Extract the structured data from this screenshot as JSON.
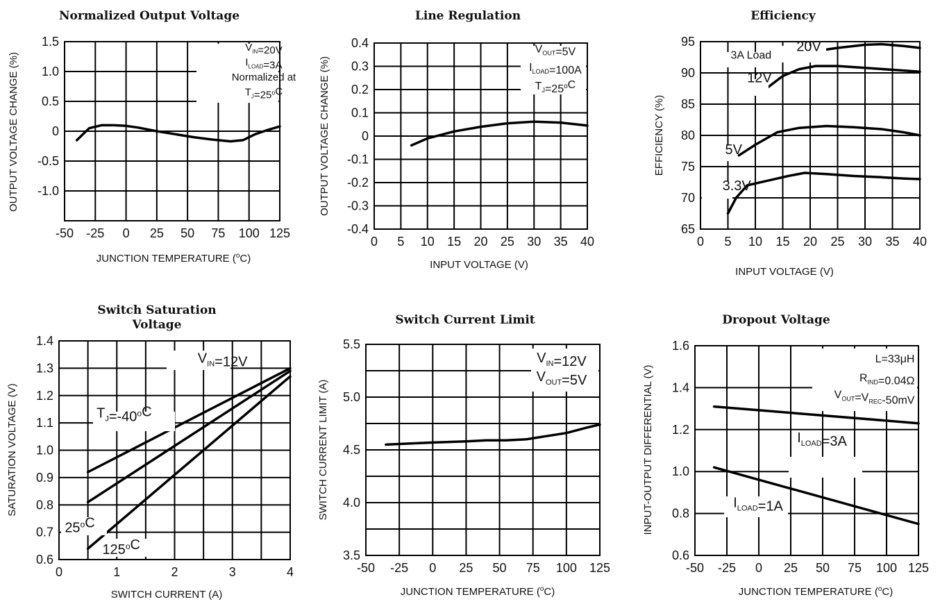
{
  "colors": {
    "line": "#000000",
    "grid": "#000000",
    "text": "#111111",
    "background": "#ffffff"
  },
  "chart_data": [
    {
      "id": "nov",
      "type": "line",
      "title": "Normalized Output Voltage",
      "xlabel": "JUNCTION TEMPERATURE (°C)",
      "ylabel": "OUTPUT VOLTAGE CHANGE (%)",
      "xlim": [
        -50,
        125
      ],
      "ylim": [
        -1.5,
        1.5
      ],
      "x_ticks": [
        -50,
        -25,
        0,
        25,
        50,
        75,
        100,
        125
      ],
      "x_tick_labels": [
        "-50",
        "-25",
        "0",
        "25",
        "50",
        "75",
        "100",
        "125"
      ],
      "y_ticks": [
        -1.0,
        -0.5,
        0,
        0.5,
        1.0,
        1.5
      ],
      "y_tick_labels": [
        "-1.0",
        "-0.5",
        "0",
        "0.5",
        "1.0",
        "1.5"
      ],
      "x_grid": [
        -50,
        -25,
        0,
        25,
        50,
        75,
        100,
        125
      ],
      "y_grid": [
        -1.5,
        -1.0,
        -0.5,
        0,
        0.5,
        1.0,
        1.5
      ],
      "grid": true,
      "series": [
        {
          "x": [
            -40,
            -30,
            -20,
            -10,
            0,
            10,
            25,
            40,
            55,
            70,
            85,
            95,
            105,
            115,
            125
          ],
          "y": [
            -0.15,
            0.05,
            0.1,
            0.1,
            0.09,
            0.06,
            0.0,
            -0.05,
            -0.1,
            -0.14,
            -0.17,
            -0.15,
            -0.05,
            0.02,
            0.08
          ]
        }
      ],
      "annotations": [
        {
          "text": "VIN=20V",
          "x": 112,
          "y": 1.35
        },
        {
          "text": "ILOAD=3A",
          "x": 112,
          "y": 1.1
        },
        {
          "text": "Normalized at",
          "x": 112,
          "y": 0.85
        },
        {
          "text": "TJ=25°C",
          "x": 112,
          "y": 0.6
        }
      ]
    },
    {
      "id": "linereg",
      "type": "line",
      "title": "Line Regulation",
      "xlabel": "INPUT VOLTAGE (V)",
      "ylabel": "OUTPUT VOLTAGE CHANGE (%)",
      "xlim": [
        0,
        40
      ],
      "ylim": [
        -0.4,
        0.4
      ],
      "x_ticks": [
        0,
        5,
        10,
        15,
        20,
        25,
        30,
        35,
        40
      ],
      "x_tick_labels": [
        "0",
        "5",
        "10",
        "15",
        "20",
        "25",
        "30",
        "35",
        "40"
      ],
      "y_ticks": [
        -0.4,
        -0.3,
        -0.2,
        -0.1,
        0,
        0.1,
        0.2,
        0.3,
        0.4
      ],
      "y_tick_labels": [
        "-0.4",
        "-0.3",
        "-0.2",
        "-0.1",
        "0",
        "0.1",
        "0.2",
        "0.3",
        "0.4"
      ],
      "x_grid": [
        5,
        10,
        15,
        20,
        25,
        30,
        35,
        40
      ],
      "y_grid": [
        -0.4,
        -0.3,
        -0.2,
        -0.1,
        0,
        0.1,
        0.2,
        0.3,
        0.4
      ],
      "grid": true,
      "series": [
        {
          "x": [
            7,
            10,
            15,
            20,
            25,
            30,
            35,
            40
          ],
          "y": [
            -0.04,
            -0.01,
            0.02,
            0.04,
            0.055,
            0.062,
            0.058,
            0.045
          ]
        }
      ],
      "annotations": [
        {
          "text": "VOUT=5V",
          "x": 34,
          "y": 0.36
        },
        {
          "text": "ILOAD=100A",
          "x": 34,
          "y": 0.28
        },
        {
          "text": "TJ=25°C",
          "x": 34,
          "y": 0.2
        }
      ]
    },
    {
      "id": "eff",
      "type": "line",
      "title": "Efficiency",
      "xlabel": "INPUT VOLTAGE (V)",
      "ylabel": "EFFICIENCY (%)",
      "xlim": [
        0,
        40
      ],
      "ylim": [
        65,
        95
      ],
      "x_ticks": [
        0,
        5,
        10,
        15,
        20,
        25,
        30,
        35,
        40
      ],
      "x_tick_labels": [
        "0",
        "5",
        "10",
        "15",
        "20",
        "25",
        "30",
        "35",
        "40"
      ],
      "y_ticks": [
        65,
        70,
        75,
        80,
        85,
        90,
        95
      ],
      "y_tick_labels": [
        "65",
        "70",
        "75",
        "80",
        "85",
        "90",
        "95"
      ],
      "x_grid": [
        5,
        10,
        15,
        20,
        25,
        30,
        35,
        40
      ],
      "y_grid": [
        65,
        70,
        75,
        80,
        85,
        90,
        95
      ],
      "grid": true,
      "series": [
        {
          "x": [
            21,
            25,
            30,
            33,
            37,
            40
          ],
          "y": [
            93.5,
            94.0,
            94.5,
            94.6,
            94.3,
            94.0
          ]
        },
        {
          "x": [
            12,
            15,
            18,
            21,
            25,
            30,
            35,
            40
          ],
          "y": [
            87.5,
            89.5,
            90.6,
            91.1,
            91.1,
            90.8,
            90.5,
            90.2
          ]
        },
        {
          "x": [
            7,
            10,
            14,
            18,
            23,
            28,
            33,
            37,
            40
          ],
          "y": [
            76.8,
            78.5,
            80.5,
            81.2,
            81.5,
            81.3,
            81.0,
            80.5,
            80.0
          ]
        },
        {
          "x": [
            5,
            6.5,
            8.5,
            12,
            16,
            19,
            23,
            28,
            33,
            37,
            40
          ],
          "y": [
            67.5,
            70.0,
            72.0,
            72.7,
            73.5,
            74.0,
            73.8,
            73.5,
            73.3,
            73.1,
            73.0
          ]
        }
      ],
      "annotations": [
        {
          "text": "3A  Load",
          "x": 5.5,
          "y": 92.3
        },
        {
          "text": "20V",
          "x": 17.5,
          "y": 93.5
        },
        {
          "text": "12V",
          "x": 8.5,
          "y": 88.5
        },
        {
          "text": "5V",
          "x": 4.5,
          "y": 77.0
        },
        {
          "text": "3.3V",
          "x": 4.0,
          "y": 71.2
        }
      ]
    },
    {
      "id": "sat",
      "type": "line",
      "title": "Switch Saturation\nVoltage",
      "xlabel": "SWITCH  CURRENT (A)",
      "ylabel": "SATURATION VOLTAGE (V)",
      "xlim": [
        0,
        4
      ],
      "ylim": [
        0.6,
        1.4
      ],
      "x_ticks": [
        0,
        1,
        2,
        3,
        4
      ],
      "x_tick_labels": [
        "0",
        "1",
        "2",
        "3",
        "4"
      ],
      "y_ticks": [
        0.6,
        0.7,
        0.8,
        0.9,
        1.0,
        1.1,
        1.2,
        1.3,
        1.4
      ],
      "y_tick_labels": [
        "0.6",
        "0.7",
        "0.8",
        "0.9",
        "1.0",
        "1.1",
        "1.2",
        "1.3",
        "1.4"
      ],
      "x_grid": [
        0,
        0.5,
        1,
        1.5,
        2,
        2.5,
        3,
        3.5,
        4
      ],
      "y_grid": [
        0.6,
        0.7,
        0.8,
        0.9,
        1.0,
        1.1,
        1.2,
        1.3,
        1.4
      ],
      "grid": true,
      "series": [
        {
          "x": [
            0.5,
            4.0
          ],
          "y": [
            0.92,
            1.3
          ]
        },
        {
          "x": [
            0.5,
            4.0
          ],
          "y": [
            0.81,
            1.29
          ]
        },
        {
          "x": [
            0.5,
            4.0
          ],
          "y": [
            0.64,
            1.27
          ]
        }
      ],
      "annotations": [
        {
          "text": "VIN=12V",
          "x": 2.4,
          "y": 1.32
        },
        {
          "text": "TJ=-40°C",
          "x": 0.65,
          "y": 1.12
        },
        {
          "text": "25°C",
          "x": 0.1,
          "y": 0.7
        },
        {
          "text": "125°C",
          "x": 0.75,
          "y": 0.62
        }
      ]
    },
    {
      "id": "ilim",
      "type": "line",
      "title": "Switch Current Limit",
      "xlabel": "JUNCTION TEMPERATURE (°C)",
      "ylabel": "SWITCH  CURRENT LIMIT (A)",
      "xlim": [
        -50,
        125
      ],
      "ylim": [
        3.5,
        5.5
      ],
      "x_ticks": [
        -50,
        -25,
        0,
        25,
        50,
        75,
        100,
        125
      ],
      "x_tick_labels": [
        "-50",
        "-25",
        "0",
        "25",
        "50",
        "75",
        "100",
        "125"
      ],
      "y_ticks": [
        3.5,
        4.0,
        4.5,
        5.0,
        5.5
      ],
      "y_tick_labels": [
        "3.5",
        "4.0",
        "4.5",
        "5.0",
        "5.5"
      ],
      "x_grid": [
        -25,
        0,
        25,
        50,
        75,
        100,
        125
      ],
      "y_grid": [
        3.5,
        3.75,
        4.0,
        4.25,
        4.5,
        4.75,
        5.0,
        5.25,
        5.5
      ],
      "grid": true,
      "series": [
        {
          "x": [
            -35,
            0,
            25,
            40,
            55,
            70,
            85,
            100,
            115,
            125
          ],
          "y": [
            4.55,
            4.57,
            4.58,
            4.59,
            4.59,
            4.6,
            4.63,
            4.66,
            4.71,
            4.74
          ]
        }
      ],
      "annotations": [
        {
          "text": "VIN=12V",
          "x": 112,
          "y": 5.33
        },
        {
          "text": "VOUT=5V",
          "x": 112,
          "y": 5.15
        }
      ]
    },
    {
      "id": "drop",
      "type": "line",
      "title": "Dropout Voltage",
      "xlabel": "JUNCTION TEMPERATURE (°C)",
      "ylabel": "INPUT-OUTPUT DIFFERENTIAL (V)",
      "xlim": [
        -50,
        125
      ],
      "ylim": [
        0.6,
        1.6
      ],
      "x_ticks": [
        -50,
        -25,
        0,
        25,
        50,
        75,
        100,
        125
      ],
      "x_tick_labels": [
        "-50",
        "-25",
        "0",
        "25",
        "50",
        "75",
        "100",
        "125"
      ],
      "y_ticks": [
        0.6,
        0.8,
        1.0,
        1.2,
        1.4,
        1.6
      ],
      "y_tick_labels": [
        "0.6",
        "0.8",
        "1.0",
        "1.2",
        "1.4",
        "1.6"
      ],
      "x_grid": [
        -25,
        0,
        25,
        50,
        75,
        100,
        125
      ],
      "y_grid": [
        0.6,
        0.8,
        1.0,
        1.2,
        1.4,
        1.6
      ],
      "grid": true,
      "series": [
        {
          "x": [
            -35,
            125
          ],
          "y": [
            1.31,
            1.23
          ]
        },
        {
          "x": [
            -35,
            125
          ],
          "y": [
            1.02,
            0.75
          ]
        }
      ],
      "annotations": [
        {
          "text": "L=33μH",
          "x": 122,
          "y": 1.52
        },
        {
          "text": "RIND=0.04Ω",
          "x": 122,
          "y": 1.43
        },
        {
          "text": "VOUT=VREC-50mV",
          "x": 122,
          "y": 1.35
        },
        {
          "text": "ILOAD=3A",
          "x": 30,
          "y": 1.14
        },
        {
          "text": "ILOAD=1A",
          "x": -20,
          "y": 0.83
        }
      ]
    }
  ]
}
